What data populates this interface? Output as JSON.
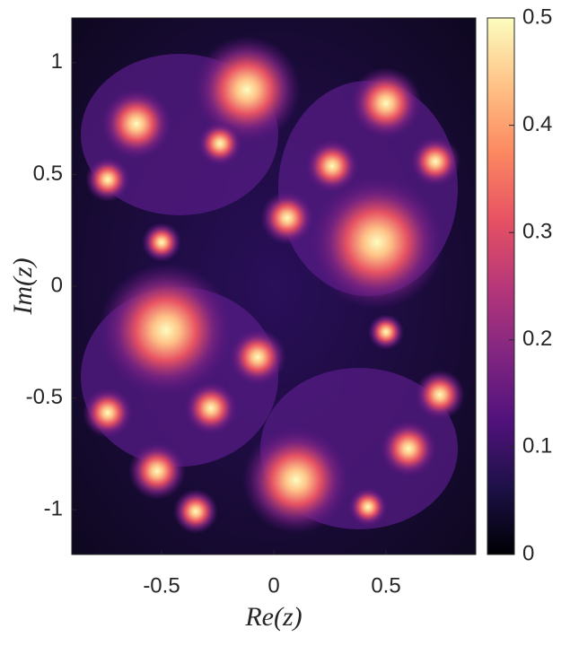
{
  "chart_data": {
    "type": "image",
    "xlabel": "Re(z)",
    "ylabel": "Im(z)",
    "xlim": [
      -0.9,
      0.9
    ],
    "xticks": [
      -0.5,
      0,
      0.5
    ],
    "ylim": [
      -1.2,
      1.2
    ],
    "yticks": [
      -1,
      -0.5,
      0,
      0.5,
      1
    ],
    "colorbar": {
      "clim": [
        0,
        0.5
      ],
      "ticks": [
        0,
        0.1,
        0.2,
        0.3,
        0.4,
        0.5
      ],
      "colors": [
        "#000004",
        "#1d1147",
        "#51127c",
        "#822681",
        "#b73779",
        "#e75263",
        "#fc8961",
        "#fec287",
        "#fcfdbf"
      ]
    }
  }
}
